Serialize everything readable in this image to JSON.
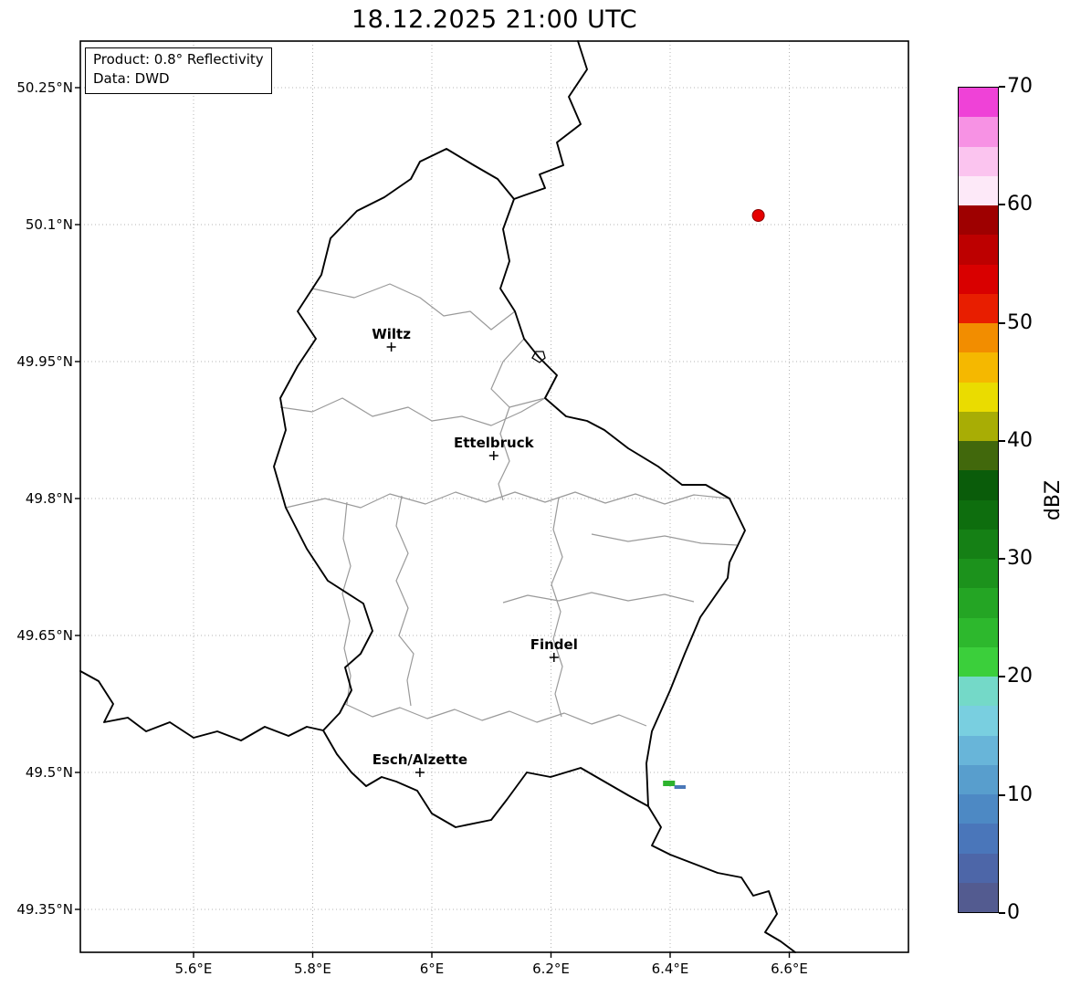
{
  "title": "18.12.2025 21:00 UTC",
  "info_box": {
    "product": "Product: 0.8° Reflectivity",
    "data_source": "Data: DWD"
  },
  "map": {
    "extent": {
      "lon_min": 5.41,
      "lon_max": 6.8,
      "lat_min": 49.303,
      "lat_max": 50.301
    },
    "xticks": [
      {
        "lon": 5.6,
        "label": "5.6°E"
      },
      {
        "lon": 5.8,
        "label": "5.8°E"
      },
      {
        "lon": 6.0,
        "label": "6°E"
      },
      {
        "lon": 6.2,
        "label": "6.2°E"
      },
      {
        "lon": 6.4,
        "label": "6.4°E"
      },
      {
        "lon": 6.6,
        "label": "6.6°E"
      }
    ],
    "yticks": [
      {
        "lat": 50.25,
        "label": "50.25°N"
      },
      {
        "lat": 50.1,
        "label": "50.1°N"
      },
      {
        "lat": 49.95,
        "label": "49.95°N"
      },
      {
        "lat": 49.8,
        "label": "49.8°N"
      },
      {
        "lat": 49.65,
        "label": "49.65°N"
      },
      {
        "lat": 49.5,
        "label": "49.5°N"
      },
      {
        "lat": 49.35,
        "label": "49.35°N"
      }
    ],
    "cities": [
      {
        "name": "Wiltz",
        "lon": 5.932,
        "lat": 49.966
      },
      {
        "name": "Ettelbruck",
        "lon": 6.104,
        "lat": 49.847
      },
      {
        "name": "Findel",
        "lon": 6.205,
        "lat": 49.626
      },
      {
        "name": "Esch/Alzette",
        "lon": 5.98,
        "lat": 49.5
      }
    ],
    "radar_site": {
      "lon": 6.548,
      "lat": 50.11,
      "color": "#e60000"
    },
    "echoes": [
      {
        "lon_min": 6.388,
        "lon_max": 6.408,
        "lat_min": 49.485,
        "lat_max": 49.491,
        "color": "#2db32d"
      },
      {
        "lon_min": 6.407,
        "lon_max": 6.426,
        "lat_min": 49.482,
        "lat_max": 49.486,
        "color": "#4a78b8"
      }
    ]
  },
  "colorbar": {
    "label": "dBZ",
    "vmin": 0,
    "vmax": 70,
    "ticks": [
      0,
      10,
      20,
      30,
      40,
      50,
      60,
      70
    ],
    "colors": [
      "#535b90",
      "#4d66a8",
      "#4a76ba",
      "#4d89c4",
      "#589ecd",
      "#68b5d9",
      "#79cfe0",
      "#74d9c8",
      "#3bcf3b",
      "#2db82d",
      "#24a524",
      "#1c921c",
      "#158015",
      "#0e6e0e",
      "#0a5c0a",
      "#41680c",
      "#a8ad05",
      "#eadc00",
      "#f5b800",
      "#f28d00",
      "#e81e00",
      "#d90000",
      "#bd0000",
      "#9e0000",
      "#fde9f8",
      "#fbc4ef",
      "#f792e4",
      "#ef42d7"
    ]
  }
}
